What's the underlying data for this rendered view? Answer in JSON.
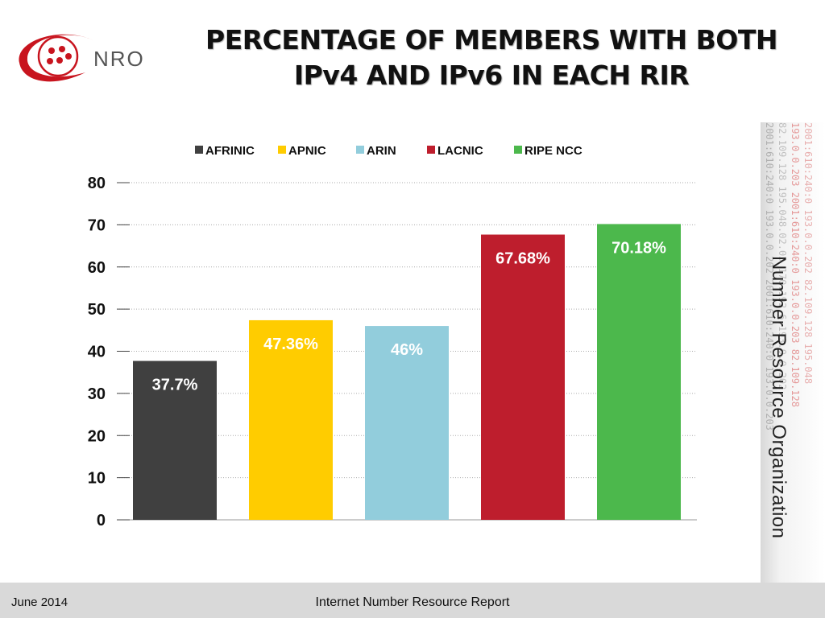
{
  "chart_data": {
    "type": "bar",
    "title_lines": [
      "PERCENTAGE OF MEMBERS WITH BOTH",
      "IPv4 AND IPv6 IN EACH RIR"
    ],
    "categories": [
      "AFRINIC",
      "APNIC",
      "ARIN",
      "LACNIC",
      "RIPE NCC"
    ],
    "values": [
      37.7,
      47.36,
      46,
      67.68,
      70.18
    ],
    "data_labels": [
      "37.7%",
      "47.36%",
      "46%",
      "67.68%",
      "70.18%"
    ],
    "colors": [
      "#404040",
      "#ffcc00",
      "#92cddc",
      "#be1e2d",
      "#4cb84c"
    ],
    "label_colors": [
      "#ffffff",
      "#ffffff",
      "#ffffff",
      "#ffffff",
      "#ffffff"
    ],
    "ylim": [
      0,
      80
    ],
    "yticks": [
      0,
      10,
      20,
      30,
      40,
      50,
      60,
      70,
      80
    ],
    "grid": true,
    "legend_position": "top"
  },
  "logo": {
    "text": "NRO",
    "accent": "#c8141e"
  },
  "side_text": "Number Resource Organization",
  "side_band_ips": [
    "2001:610:240:0 193.0.0.202 2001:610:240:0 193.0.0.203",
    "82.109.128 195.048.02.03 170.192.6 193.0.0.202",
    "193.0.0.203 2001:610:240:0 193.0.0.203 82.109.128",
    "2001:610:240:0 193.0.0.202 82.109.128 195.048"
  ],
  "footer": {
    "date": "June 2014",
    "report": "Internet Number Resource Report"
  }
}
